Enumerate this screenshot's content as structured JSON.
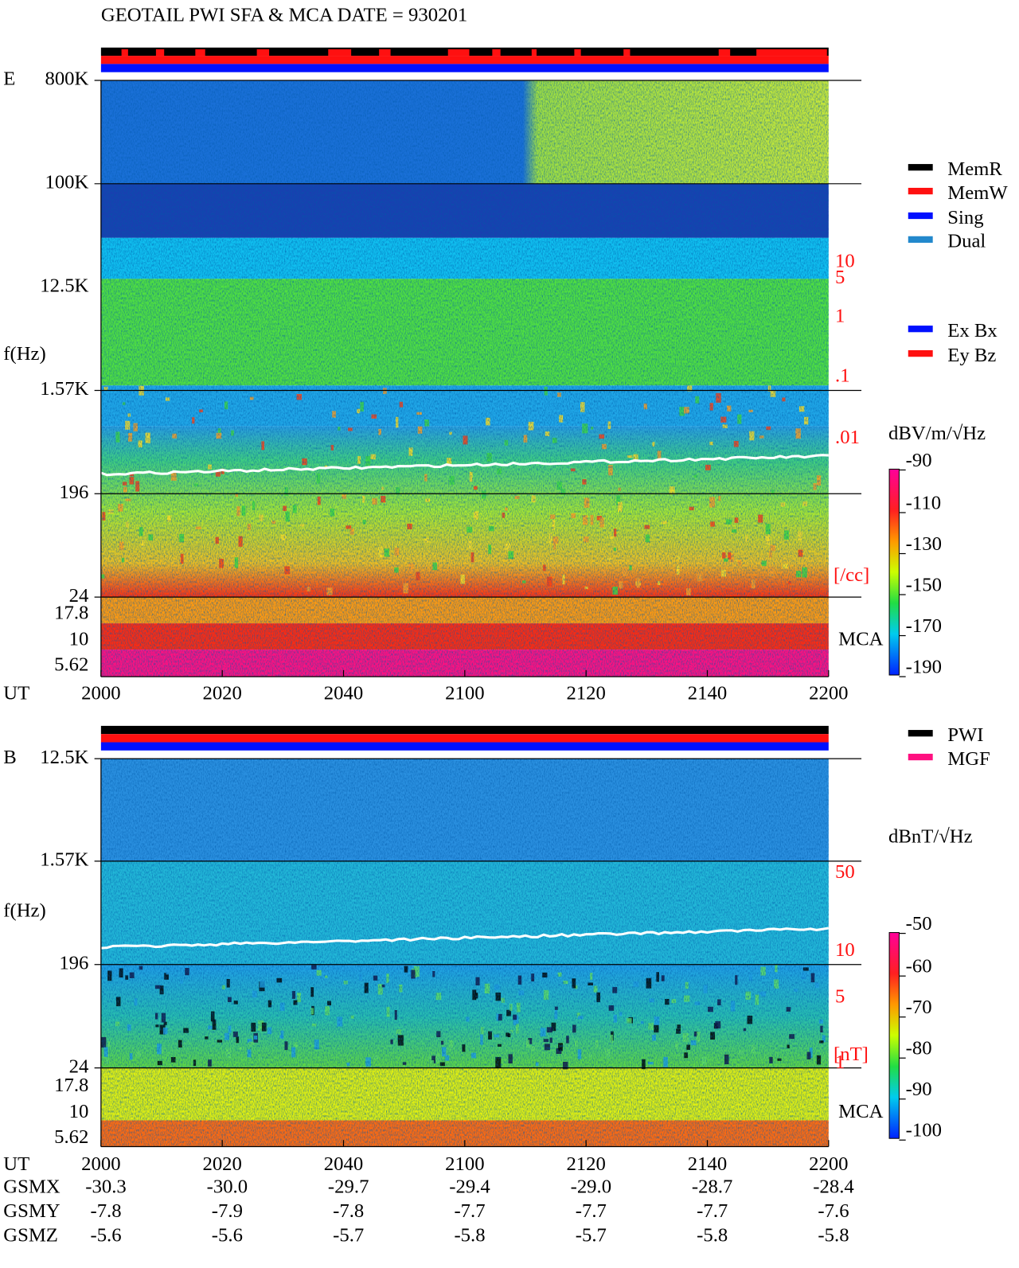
{
  "title": "GEOTAIL   PWI SFA & MCA   DATE = 930201",
  "panels": [
    {
      "label": "E",
      "y_axis_label": "f(Hz)",
      "freq_ticks": [
        "800K",
        "100K",
        "12.5K",
        "1.57K",
        "196",
        "24",
        "17.8",
        "10",
        "5.62"
      ],
      "density_ticks": [
        "10",
        "5",
        "1",
        ".1",
        ".01"
      ],
      "density_unit": "[/cc]",
      "mca_label": "MCA",
      "colorbar_unit": "dBV/m/√Hz",
      "colorbar_ticks": [
        "-90",
        "-110",
        "-130",
        "-150",
        "-170",
        "-190"
      ],
      "legend": [
        {
          "label": "MemR",
          "color": "#000000"
        },
        {
          "label": "MemW",
          "color": "#ff1010"
        },
        {
          "label": "Sing",
          "color": "#0010ff"
        },
        {
          "label": "Dual",
          "color": "#2288cc"
        },
        {
          "label": "Ex Bx",
          "color": "#0010ff"
        },
        {
          "label": "Ey Bz",
          "color": "#ff1010"
        }
      ]
    },
    {
      "label": "B",
      "y_axis_label": "f(Hz)",
      "freq_ticks": [
        "12.5K",
        "1.57K",
        "196",
        "24",
        "17.8",
        "10",
        "5.62"
      ],
      "density_ticks": [
        "50",
        "10",
        "5",
        "1"
      ],
      "density_unit": "[nT]",
      "mca_label": "MCA",
      "colorbar_unit": "dBnT/√Hz",
      "colorbar_ticks": [
        "-50",
        "-60",
        "-70",
        "-80",
        "-90",
        "-100"
      ],
      "legend": [
        {
          "label": "PWI",
          "color": "#000000"
        },
        {
          "label": "MGF",
          "color": "#ff1080"
        }
      ]
    }
  ],
  "time_axis": {
    "label": "UT",
    "ticks": [
      "2000",
      "2020",
      "2040",
      "2100",
      "2120",
      "2140",
      "2200"
    ]
  },
  "orbit": [
    {
      "label": "GSMX",
      "values": [
        "-30.3",
        "-30.0",
        "-29.7",
        "-29.4",
        "-29.0",
        "-28.7",
        "-28.4"
      ]
    },
    {
      "label": "GSMY",
      "values": [
        "-7.8",
        "-7.9",
        "-7.8",
        "-7.7",
        "-7.7",
        "-7.7",
        "-7.6"
      ]
    },
    {
      "label": "GSMZ",
      "values": [
        "-5.6",
        "-5.6",
        "-5.7",
        "-5.8",
        "-5.7",
        "-5.8",
        "-5.8"
      ]
    }
  ]
}
